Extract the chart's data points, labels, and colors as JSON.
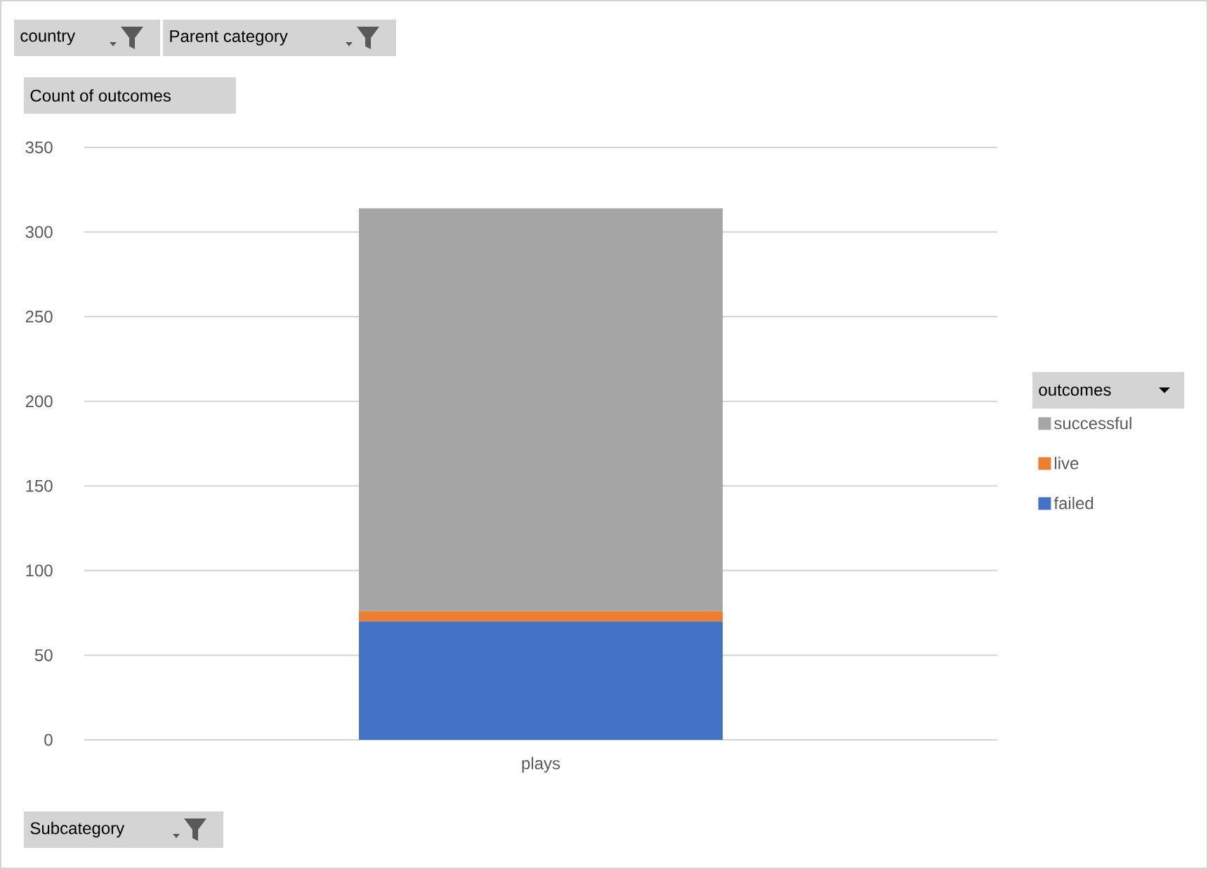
{
  "chart_data": {
    "type": "bar",
    "stacked": true,
    "ylabel": "Count of outcomes",
    "legend_title": "outcomes",
    "annotations": [
      "country",
      "Parent category",
      "Subcategory"
    ],
    "categories": [
      "plays"
    ],
    "series": [
      {
        "name": "failed",
        "color": "#4472c4",
        "values": [
          70
        ]
      },
      {
        "name": "live",
        "color": "#ed7d31",
        "values": [
          6
        ]
      },
      {
        "name": "successful",
        "color": "#a5a5a5",
        "values": [
          238
        ]
      }
    ],
    "ylim": [
      0,
      350
    ],
    "yticks": [
      0,
      50,
      100,
      150,
      200,
      250,
      300,
      350
    ],
    "grid": "y",
    "legend": "right"
  }
}
